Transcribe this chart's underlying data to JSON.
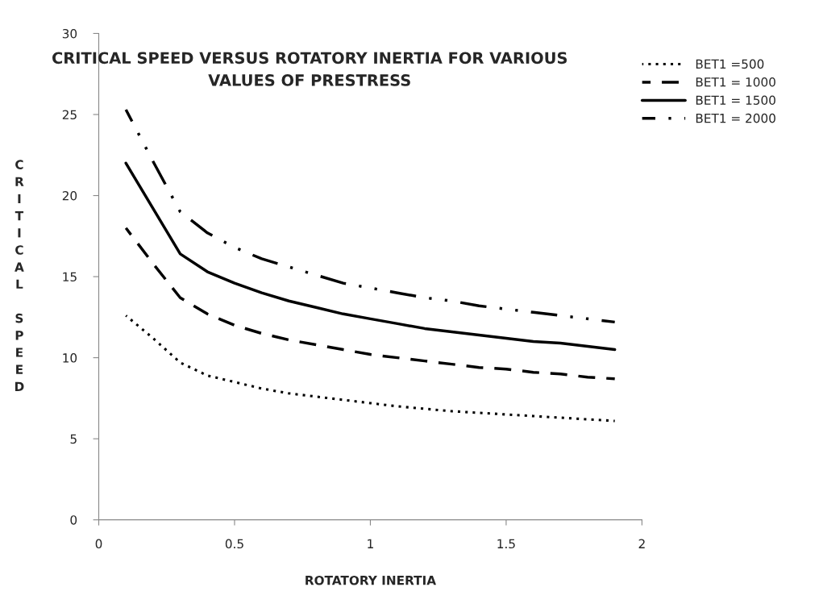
{
  "chart_data": {
    "type": "line",
    "title": "CRITICAL SPEED VERSUS ROTATORY INERTIA FOR VARIOUS VALUES OF PRESTRESS",
    "xlabel": "ROTATORY INERTIA",
    "ylabel": "CRITICAL SPEED",
    "x": [
      0.1,
      0.2,
      0.3,
      0.4,
      0.5,
      0.6,
      0.7,
      0.8,
      0.9,
      1.0,
      1.1,
      1.2,
      1.3,
      1.4,
      1.5,
      1.6,
      1.7,
      1.8,
      1.9
    ],
    "series": [
      {
        "name": "BET1 =500",
        "color": "#000000",
        "line_style": "dotted",
        "values": [
          12.6,
          11.2,
          9.7,
          8.9,
          8.5,
          8.1,
          7.8,
          7.6,
          7.4,
          7.2,
          7.0,
          6.85,
          6.7,
          6.6,
          6.5,
          6.4,
          6.3,
          6.2,
          6.1
        ]
      },
      {
        "name": "BET1 = 1000",
        "color": "#000000",
        "line_style": "dashed",
        "values": [
          18,
          15.8,
          13.7,
          12.7,
          12.0,
          11.5,
          11.1,
          10.8,
          10.5,
          10.2,
          10.0,
          9.8,
          9.6,
          9.4,
          9.3,
          9.1,
          9.0,
          8.8,
          8.7
        ]
      },
      {
        "name": "BET1 = 1500",
        "color": "#000000",
        "line_style": "solid",
        "values": [
          22,
          19.2,
          16.4,
          15.3,
          14.6,
          14.0,
          13.5,
          13.1,
          12.7,
          12.4,
          12.1,
          11.8,
          11.6,
          11.4,
          11.2,
          11.0,
          10.9,
          10.7,
          10.5
        ]
      },
      {
        "name": "BET1 = 2000",
        "color": "#000000",
        "line_style": "dashdotdot",
        "values": [
          25.3,
          22.1,
          19.0,
          17.7,
          16.8,
          16.1,
          15.6,
          15.1,
          14.6,
          14.3,
          14.0,
          13.7,
          13.5,
          13.2,
          13.0,
          12.8,
          12.6,
          12.4,
          12.2
        ]
      }
    ],
    "xlim": [
      0,
      2
    ],
    "xticks": [
      0,
      0.5,
      1,
      1.5,
      2
    ],
    "ylim": [
      0,
      30
    ],
    "yticks": [
      0,
      5,
      10,
      15,
      20,
      25,
      30
    ],
    "grid": false,
    "legend": "top right",
    "marker": "none"
  }
}
